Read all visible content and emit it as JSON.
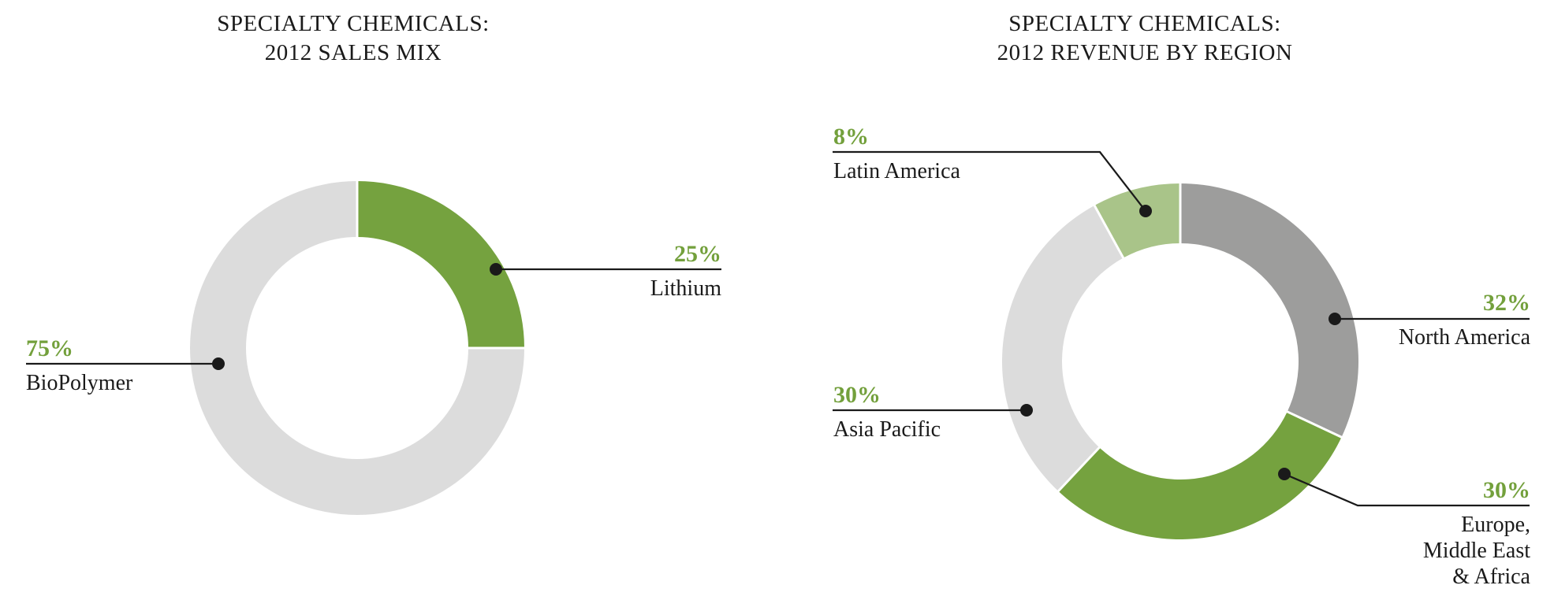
{
  "styles": {
    "background": "#FFFFFF",
    "title_color": "#1A1A1A",
    "pct_text_color": "#73A03C",
    "name_text_color": "#1A1A1A",
    "leader_line_color": "#1A1A1A",
    "separator_color": "#FFFFFF"
  },
  "chart_data": [
    {
      "type": "pie",
      "subtype": "donut",
      "title_lines": [
        "SPECIALTY CHEMICALS:",
        "2012 SALES MIX"
      ],
      "direction": "clockwise",
      "start_angle_deg": 0,
      "legend": "none",
      "segments": [
        {
          "label": "Lithium",
          "value_pct": 25,
          "display_pct": "25%",
          "color": "#75A23F"
        },
        {
          "label": "BioPolymer",
          "value_pct": 75,
          "display_pct": "75%",
          "color": "#DCDCDC"
        }
      ]
    },
    {
      "type": "pie",
      "subtype": "donut",
      "title_lines": [
        "SPECIALTY CHEMICALS:",
        "2012 REVENUE BY REGION"
      ],
      "direction": "clockwise",
      "start_angle_deg": 0,
      "legend": "none",
      "segments": [
        {
          "label": "North America",
          "value_pct": 32,
          "display_pct": "32%",
          "color": "#9D9D9C"
        },
        {
          "label": "Europe, Middle East & Africa",
          "value_pct": 30,
          "display_pct": "30%",
          "color": "#75A23F",
          "label_lines": [
            "Europe,",
            "Middle East",
            "& Africa"
          ]
        },
        {
          "label": "Asia Pacific",
          "value_pct": 30,
          "display_pct": "30%",
          "color": "#DCDCDC"
        },
        {
          "label": "Latin America",
          "value_pct": 8,
          "display_pct": "8%",
          "color": "#A9C489"
        }
      ]
    }
  ]
}
